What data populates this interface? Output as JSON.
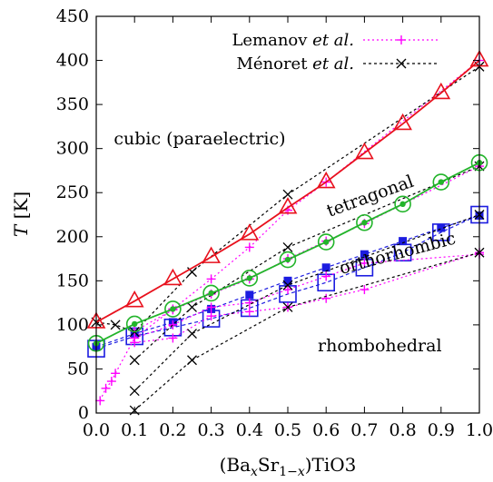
{
  "chart_data": {
    "type": "line",
    "xlabel": "(BaxSr1-x)TiO3",
    "ylabel": "T [K]",
    "xlim": [
      0.0,
      1.0
    ],
    "ylim": [
      0,
      450
    ],
    "x_ticks": [
      "0.0",
      "0.1",
      "0.2",
      "0.3",
      "0.4",
      "0.5",
      "0.6",
      "0.7",
      "0.8",
      "0.9",
      "1.0"
    ],
    "y_ticks": [
      "0",
      "50",
      "100",
      "150",
      "200",
      "250",
      "300",
      "350",
      "400",
      "450"
    ],
    "grid": false,
    "legend_position": "top-right",
    "legend": {
      "entries": [
        {
          "label_main": "Lemanov",
          "label_em": "et al.",
          "color": "#ff00ff",
          "marker": "plus"
        },
        {
          "label_main": "Ménoret",
          "label_em": "et al.",
          "color": "#000000",
          "marker": "x"
        }
      ]
    },
    "annotations": [
      {
        "text": "cubic (paraelectric)",
        "x": 0.27,
        "y": 305,
        "rotate": 0
      },
      {
        "text": "tetragonal",
        "x": 0.72,
        "y": 240,
        "rotate": -20
      },
      {
        "text": "orthorhombic",
        "x": 0.79,
        "y": 175,
        "rotate": -15
      },
      {
        "text": "rhombohedral",
        "x": 0.74,
        "y": 70,
        "rotate": 0
      }
    ],
    "series": [
      {
        "group": "sim_cubic",
        "color": "#e8101c",
        "marker": "triangle",
        "dash": "none",
        "x": [
          0.0,
          0.1,
          0.2,
          0.3,
          0.4,
          0.5,
          0.6,
          0.7,
          0.8,
          0.9,
          1.0
        ],
        "y": [
          103,
          127,
          152,
          177,
          203,
          233,
          262,
          295,
          328,
          363,
          400
        ]
      },
      {
        "group": "sim_tetragonal",
        "color": "#22b42a",
        "marker": "circle",
        "dash": "none",
        "x": [
          0.0,
          0.1,
          0.2,
          0.3,
          0.4,
          0.5,
          0.6,
          0.7,
          0.8,
          0.9,
          1.0
        ],
        "y": [
          79,
          101,
          118,
          136,
          153,
          174,
          194,
          216,
          237,
          262,
          284
        ]
      },
      {
        "group": "sim_orthorhombic",
        "color": "#1c1ce0",
        "marker": "square-filled",
        "dash": "4,3",
        "x": [
          0.0,
          0.1,
          0.2,
          0.3,
          0.4,
          0.5,
          0.6,
          0.7,
          0.8,
          0.9,
          1.0
        ],
        "y": [
          75,
          90,
          103,
          118,
          134,
          150,
          165,
          180,
          195,
          210,
          224
        ]
      },
      {
        "group": "sim_rhombohedral",
        "color": "#1c1ce0",
        "marker": "square-open",
        "dash": "4,3",
        "x": [
          0.0,
          0.1,
          0.2,
          0.3,
          0.4,
          0.5,
          0.6,
          0.7,
          0.8,
          0.9,
          1.0
        ],
        "y": [
          73,
          87,
          97,
          107,
          119,
          135,
          148,
          165,
          182,
          205,
          225
        ]
      },
      {
        "group": "lemanov",
        "color": "#ff00ff",
        "marker": "plus",
        "dash": "2,3",
        "x": [
          0.01,
          0.025,
          0.04,
          0.05,
          0.1,
          0.2,
          0.3,
          0.4,
          0.5,
          0.6,
          1.0
        ],
        "y": [
          14,
          28,
          36,
          45,
          85,
          118,
          152,
          188,
          230,
          262,
          400
        ]
      },
      {
        "group": "lemanov",
        "color": "#ff00ff",
        "marker": "plus",
        "dash": "2,3",
        "x": [
          0.1,
          0.2,
          0.3,
          0.4,
          0.5,
          0.6,
          0.7,
          1.0
        ],
        "y": [
          93,
          117,
          135,
          152,
          175,
          195,
          215,
          280
        ]
      },
      {
        "group": "lemanov",
        "color": "#ff00ff",
        "marker": "plus",
        "dash": "2,3",
        "x": [
          0.1,
          0.2,
          0.3,
          0.4,
          0.5,
          0.6,
          0.7,
          1.0
        ],
        "y": [
          85,
          100,
          120,
          125,
          140,
          155,
          170,
          180
        ]
      },
      {
        "group": "lemanov",
        "color": "#ff00ff",
        "marker": "plus",
        "dash": "2,3",
        "x": [
          0.1,
          0.2,
          0.3,
          0.4,
          0.5,
          0.6,
          0.7,
          1.0
        ],
        "y": [
          80,
          85,
          110,
          115,
          120,
          130,
          140,
          182
        ]
      },
      {
        "group": "menoret",
        "color": "#000000",
        "marker": "x",
        "dash": "3,3",
        "x": [
          0.0,
          0.05,
          0.1,
          0.25,
          0.5,
          1.0
        ],
        "y": [
          103,
          100,
          92,
          160,
          248,
          393
        ]
      },
      {
        "group": "menoret",
        "color": "#000000",
        "marker": "x",
        "dash": "3,3",
        "x": [
          0.1,
          0.25,
          0.5,
          1.0
        ],
        "y": [
          60,
          120,
          188,
          280
        ]
      },
      {
        "group": "menoret",
        "color": "#000000",
        "marker": "x",
        "dash": "3,3",
        "x": [
          0.1,
          0.25,
          0.5,
          1.0
        ],
        "y": [
          25,
          90,
          145,
          225
        ]
      },
      {
        "group": "menoret",
        "color": "#000000",
        "marker": "x",
        "dash": "3,3",
        "x": [
          0.1,
          0.25,
          0.5,
          1.0
        ],
        "y": [
          3,
          60,
          120,
          182
        ]
      }
    ]
  }
}
